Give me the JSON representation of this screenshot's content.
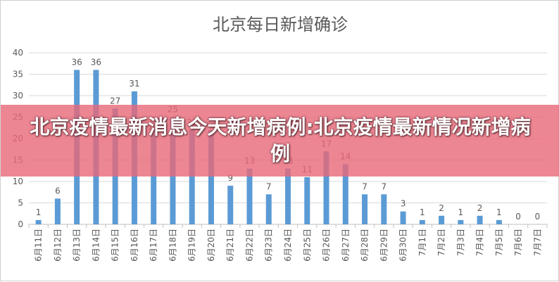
{
  "overlay": {
    "headline": "北京疫情最新消息今天新增病例:北京疫情最新情况新增病例"
  },
  "chart_data": {
    "type": "bar",
    "title": "北京每日新增确诊",
    "xlabel": "",
    "ylabel": "",
    "ylim": [
      0,
      40
    ],
    "yticks": [
      0,
      5,
      10,
      15,
      20,
      25,
      30,
      35,
      40
    ],
    "grid": true,
    "legend": "none",
    "bar_color": "#5b9bd5",
    "categories": [
      "6月11日",
      "6月12日",
      "6月13日",
      "6月14日",
      "6月15日",
      "6月16日",
      "6月17日",
      "6月18日",
      "6月19日",
      "6月20日",
      "6月21日",
      "6月22日",
      "6月23日",
      "6月24日",
      "6月25日",
      "6月26日",
      "6月27日",
      "6月28日",
      "6月29日",
      "6月30日",
      "7月1日",
      "7月2日",
      "7月3日",
      "7月4日",
      "7月5日",
      "7月6日",
      "7月7日"
    ],
    "values": [
      1,
      6,
      36,
      36,
      27,
      31,
      21,
      25,
      22,
      22,
      9,
      13,
      7,
      13,
      11,
      17,
      14,
      7,
      7,
      3,
      1,
      2,
      1,
      2,
      1,
      0,
      0
    ]
  }
}
